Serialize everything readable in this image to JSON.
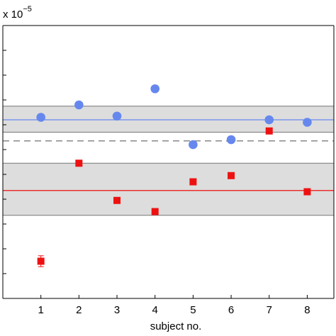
{
  "chart_data": {
    "type": "scatter",
    "xlabel": "subject no.",
    "ylabel": "",
    "y_scale_label": "x 10",
    "y_scale_exponent": "−5",
    "x_ticks": [
      1,
      2,
      3,
      4,
      5,
      6,
      7,
      8
    ],
    "xlim": [
      0,
      8.7
    ],
    "ylim": [
      -1,
      10
    ],
    "y_ticks": [
      0,
      1,
      2,
      3,
      4,
      5,
      6,
      7,
      8,
      9,
      10
    ],
    "grid": false,
    "series": [
      {
        "marker": "circle",
        "color": "#6688ee",
        "x": [
          1,
          2,
          3,
          4,
          5,
          6,
          7,
          8
        ],
        "y": [
          6.3,
          6.8,
          6.35,
          7.45,
          5.2,
          5.4,
          6.2,
          6.1
        ],
        "mean_line": 6.2,
        "band": [
          5.7,
          6.75
        ]
      },
      {
        "marker": "square",
        "color": "#ee1111",
        "x": [
          1,
          2,
          3,
          4,
          5,
          6,
          7,
          8
        ],
        "y": [
          0.5,
          4.45,
          2.95,
          2.5,
          3.7,
          3.95,
          5.75,
          3.3
        ],
        "errors": [
          0.22,
          0,
          0,
          0,
          0,
          0,
          0,
          0
        ],
        "mean_line": 3.35,
        "band": [
          2.35,
          4.45
        ]
      }
    ],
    "reference_line": {
      "y": 5.35,
      "style": "dashed",
      "color": "#888888"
    },
    "band_color": "#dddddd"
  }
}
